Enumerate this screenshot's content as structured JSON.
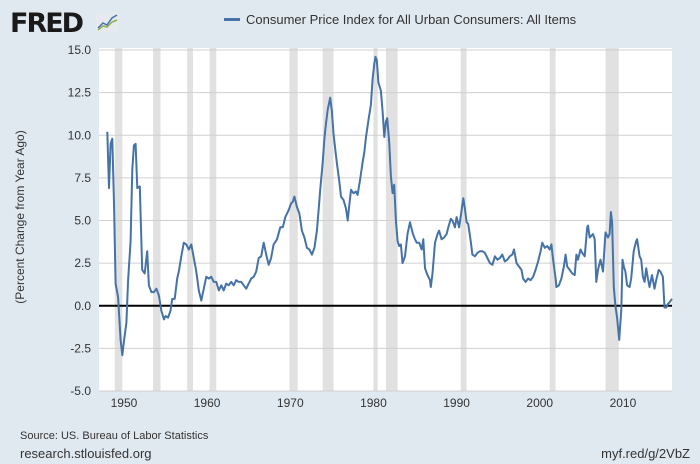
{
  "header": {
    "logo": "FRED",
    "logo_icon": "chart-line-icon"
  },
  "footer": {
    "source": "Source: US. Bureau of Labor Statistics",
    "site": "research.stlouisfed.org",
    "short_url": "myf.red/g/2VbZ"
  },
  "chart_data": {
    "type": "line",
    "title": "",
    "ylabel": "(Percent Change from Year Ago)",
    "xlabel": "",
    "xlim": [
      1947,
      2015.9
    ],
    "ylim": [
      -5,
      15
    ],
    "grid": true,
    "legend_position": "top",
    "line_color": "#4572a7",
    "recession_color": "#e1e1e1",
    "x_ticks": [
      1950,
      1960,
      1970,
      1980,
      1990,
      2000,
      2010
    ],
    "x_tick_labels": [
      "1950",
      "1960",
      "1970",
      "1980",
      "1990",
      "2000",
      "2010"
    ],
    "y_ticks": [
      -5,
      -2.5,
      0,
      2.5,
      5,
      7.5,
      10,
      12.5,
      15
    ],
    "y_tick_labels": [
      "-5.0",
      "-2.5",
      "0.0",
      "2.5",
      "5.0",
      "7.5",
      "10.0",
      "12.5",
      "15.0"
    ],
    "recessions": [
      [
        1948.9,
        1949.8
      ],
      [
        1953.5,
        1954.4
      ],
      [
        1957.6,
        1958.3
      ],
      [
        1960.3,
        1961.1
      ],
      [
        1969.9,
        1970.9
      ],
      [
        1973.9,
        1975.2
      ],
      [
        1980.0,
        1980.5
      ],
      [
        1981.5,
        1982.9
      ],
      [
        1990.5,
        1991.2
      ],
      [
        2001.2,
        2001.9
      ],
      [
        2007.9,
        2009.5
      ]
    ],
    "series": [
      {
        "name": "Consumer Price Index for All Urban Consumers: All Items",
        "points": [
          [
            1948.0,
            10.2
          ],
          [
            1948.2,
            6.9
          ],
          [
            1948.4,
            9.5
          ],
          [
            1948.6,
            9.8
          ],
          [
            1948.8,
            6.0
          ],
          [
            1949.0,
            1.3
          ],
          [
            1949.3,
            0.5
          ],
          [
            1949.6,
            -2.0
          ],
          [
            1949.8,
            -2.9
          ],
          [
            1950.0,
            -2.1
          ],
          [
            1950.3,
            -1.0
          ],
          [
            1950.5,
            1.5
          ],
          [
            1950.8,
            3.8
          ],
          [
            1951.0,
            8.0
          ],
          [
            1951.2,
            9.4
          ],
          [
            1951.4,
            9.5
          ],
          [
            1951.6,
            6.9
          ],
          [
            1951.9,
            7.0
          ],
          [
            1952.2,
            2.1
          ],
          [
            1952.5,
            1.9
          ],
          [
            1952.8,
            3.2
          ],
          [
            1953.0,
            1.2
          ],
          [
            1953.3,
            0.8
          ],
          [
            1953.6,
            0.8
          ],
          [
            1953.9,
            1.0
          ],
          [
            1954.2,
            0.6
          ],
          [
            1954.5,
            -0.3
          ],
          [
            1954.8,
            -0.8
          ],
          [
            1955.0,
            -0.6
          ],
          [
            1955.3,
            -0.7
          ],
          [
            1955.6,
            -0.3
          ],
          [
            1955.8,
            0.4
          ],
          [
            1956.1,
            0.4
          ],
          [
            1956.4,
            1.6
          ],
          [
            1956.6,
            2.0
          ],
          [
            1956.9,
            2.9
          ],
          [
            1957.2,
            3.7
          ],
          [
            1957.5,
            3.6
          ],
          [
            1957.8,
            3.3
          ],
          [
            1958.1,
            3.6
          ],
          [
            1958.4,
            2.8
          ],
          [
            1958.7,
            2.0
          ],
          [
            1959.0,
            0.9
          ],
          [
            1959.3,
            0.3
          ],
          [
            1959.6,
            1.0
          ],
          [
            1959.9,
            1.7
          ],
          [
            1960.2,
            1.6
          ],
          [
            1960.5,
            1.7
          ],
          [
            1960.8,
            1.4
          ],
          [
            1961.1,
            1.4
          ],
          [
            1961.4,
            0.9
          ],
          [
            1961.7,
            1.2
          ],
          [
            1962.0,
            0.9
          ],
          [
            1962.3,
            1.3
          ],
          [
            1962.6,
            1.2
          ],
          [
            1962.9,
            1.4
          ],
          [
            1963.2,
            1.2
          ],
          [
            1963.5,
            1.5
          ],
          [
            1963.8,
            1.4
          ],
          [
            1964.1,
            1.4
          ],
          [
            1964.4,
            1.2
          ],
          [
            1964.7,
            1.0
          ],
          [
            1965.0,
            1.3
          ],
          [
            1965.3,
            1.6
          ],
          [
            1965.6,
            1.7
          ],
          [
            1965.9,
            2.0
          ],
          [
            1966.2,
            2.8
          ],
          [
            1966.5,
            2.9
          ],
          [
            1966.8,
            3.7
          ],
          [
            1967.1,
            3.0
          ],
          [
            1967.4,
            2.4
          ],
          [
            1967.7,
            2.8
          ],
          [
            1968.0,
            3.6
          ],
          [
            1968.4,
            3.9
          ],
          [
            1968.8,
            4.6
          ],
          [
            1969.1,
            4.6
          ],
          [
            1969.4,
            5.2
          ],
          [
            1969.8,
            5.6
          ],
          [
            1970.1,
            6.0
          ],
          [
            1970.3,
            6.1
          ],
          [
            1970.5,
            6.4
          ],
          [
            1970.8,
            5.8
          ],
          [
            1971.1,
            5.4
          ],
          [
            1971.4,
            4.4
          ],
          [
            1971.7,
            4.0
          ],
          [
            1972.0,
            3.4
          ],
          [
            1972.3,
            3.3
          ],
          [
            1972.6,
            3.0
          ],
          [
            1972.9,
            3.4
          ],
          [
            1973.2,
            4.4
          ],
          [
            1973.4,
            5.6
          ],
          [
            1973.6,
            6.8
          ],
          [
            1973.9,
            8.4
          ],
          [
            1974.1,
            9.8
          ],
          [
            1974.3,
            10.7
          ],
          [
            1974.5,
            11.5
          ],
          [
            1974.8,
            12.2
          ],
          [
            1975.0,
            11.4
          ],
          [
            1975.2,
            10.1
          ],
          [
            1975.4,
            9.2
          ],
          [
            1975.6,
            8.4
          ],
          [
            1975.9,
            7.3
          ],
          [
            1976.1,
            6.4
          ],
          [
            1976.4,
            6.2
          ],
          [
            1976.7,
            5.7
          ],
          [
            1976.9,
            5.0
          ],
          [
            1977.1,
            5.9
          ],
          [
            1977.3,
            6.8
          ],
          [
            1977.6,
            6.6
          ],
          [
            1977.9,
            6.7
          ],
          [
            1978.1,
            6.5
          ],
          [
            1978.4,
            7.4
          ],
          [
            1978.7,
            8.4
          ],
          [
            1978.9,
            9.0
          ],
          [
            1979.1,
            9.9
          ],
          [
            1979.4,
            10.9
          ],
          [
            1979.7,
            11.8
          ],
          [
            1979.9,
            13.3
          ],
          [
            1980.1,
            14.2
          ],
          [
            1980.25,
            14.6
          ],
          [
            1980.4,
            14.4
          ],
          [
            1980.6,
            13.1
          ],
          [
            1980.9,
            12.6
          ],
          [
            1981.1,
            11.4
          ],
          [
            1981.3,
            9.9
          ],
          [
            1981.5,
            10.8
          ],
          [
            1981.65,
            11.0
          ],
          [
            1981.9,
            9.6
          ],
          [
            1982.1,
            7.6
          ],
          [
            1982.3,
            6.6
          ],
          [
            1982.5,
            7.1
          ],
          [
            1982.7,
            5.0
          ],
          [
            1982.9,
            3.8
          ],
          [
            1983.1,
            3.5
          ],
          [
            1983.3,
            3.6
          ],
          [
            1983.5,
            2.5
          ],
          [
            1983.8,
            2.9
          ],
          [
            1984.1,
            4.2
          ],
          [
            1984.4,
            4.9
          ],
          [
            1984.7,
            4.3
          ],
          [
            1984.9,
            4.0
          ],
          [
            1985.2,
            3.7
          ],
          [
            1985.5,
            3.7
          ],
          [
            1985.8,
            3.3
          ],
          [
            1986.0,
            3.9
          ],
          [
            1986.2,
            2.2
          ],
          [
            1986.5,
            1.8
          ],
          [
            1986.8,
            1.5
          ],
          [
            1986.9,
            1.1
          ],
          [
            1987.1,
            1.9
          ],
          [
            1987.4,
            3.7
          ],
          [
            1987.7,
            4.2
          ],
          [
            1987.9,
            4.4
          ],
          [
            1988.2,
            3.9
          ],
          [
            1988.5,
            4.0
          ],
          [
            1988.8,
            4.2
          ],
          [
            1989.0,
            4.6
          ],
          [
            1989.3,
            5.1
          ],
          [
            1989.5,
            5.0
          ],
          [
            1989.8,
            4.6
          ],
          [
            1990.0,
            5.2
          ],
          [
            1990.3,
            4.6
          ],
          [
            1990.6,
            5.6
          ],
          [
            1990.8,
            6.3
          ],
          [
            1991.0,
            5.7
          ],
          [
            1991.2,
            4.9
          ],
          [
            1991.4,
            4.8
          ],
          [
            1991.7,
            3.8
          ],
          [
            1991.9,
            3.0
          ],
          [
            1992.2,
            2.9
          ],
          [
            1992.5,
            3.1
          ],
          [
            1992.8,
            3.2
          ],
          [
            1993.1,
            3.2
          ],
          [
            1993.4,
            3.1
          ],
          [
            1993.7,
            2.8
          ],
          [
            1994.0,
            2.5
          ],
          [
            1994.3,
            2.4
          ],
          [
            1994.6,
            2.9
          ],
          [
            1994.9,
            2.7
          ],
          [
            1995.2,
            2.8
          ],
          [
            1995.5,
            3.0
          ],
          [
            1995.8,
            2.6
          ],
          [
            1996.1,
            2.7
          ],
          [
            1996.4,
            2.9
          ],
          [
            1996.7,
            3.0
          ],
          [
            1996.9,
            3.3
          ],
          [
            1997.2,
            2.5
          ],
          [
            1997.5,
            2.3
          ],
          [
            1997.8,
            2.1
          ],
          [
            1998.0,
            1.6
          ],
          [
            1998.3,
            1.4
          ],
          [
            1998.6,
            1.6
          ],
          [
            1998.9,
            1.5
          ],
          [
            1999.2,
            1.7
          ],
          [
            1999.5,
            2.1
          ],
          [
            1999.8,
            2.6
          ],
          [
            2000.1,
            3.2
          ],
          [
            2000.3,
            3.7
          ],
          [
            2000.6,
            3.4
          ],
          [
            2000.9,
            3.5
          ],
          [
            2001.2,
            3.3
          ],
          [
            2001.4,
            3.6
          ],
          [
            2001.6,
            2.7
          ],
          [
            2001.9,
            1.6
          ],
          [
            2002.0,
            1.1
          ],
          [
            2002.3,
            1.2
          ],
          [
            2002.6,
            1.6
          ],
          [
            2002.9,
            2.3
          ],
          [
            2003.1,
            3.0
          ],
          [
            2003.3,
            2.3
          ],
          [
            2003.6,
            2.1
          ],
          [
            2003.9,
            1.9
          ],
          [
            2004.2,
            1.8
          ],
          [
            2004.4,
            3.0
          ],
          [
            2004.6,
            2.7
          ],
          [
            2004.9,
            3.3
          ],
          [
            2005.1,
            3.1
          ],
          [
            2005.4,
            2.9
          ],
          [
            2005.7,
            4.6
          ],
          [
            2005.8,
            4.7
          ],
          [
            2006.0,
            4.0
          ],
          [
            2006.4,
            4.2
          ],
          [
            2006.6,
            3.9
          ],
          [
            2006.8,
            1.4
          ],
          [
            2007.0,
            2.1
          ],
          [
            2007.3,
            2.7
          ],
          [
            2007.6,
            2.0
          ],
          [
            2007.8,
            3.5
          ],
          [
            2007.9,
            4.3
          ],
          [
            2008.2,
            4.0
          ],
          [
            2008.4,
            4.2
          ],
          [
            2008.55,
            5.5
          ],
          [
            2008.7,
            4.9
          ],
          [
            2008.9,
            1.1
          ],
          [
            2009.1,
            0.0
          ],
          [
            2009.3,
            -0.7
          ],
          [
            2009.55,
            -2.0
          ],
          [
            2009.8,
            -0.2
          ],
          [
            2009.95,
            2.7
          ],
          [
            2010.1,
            2.3
          ],
          [
            2010.3,
            2.0
          ],
          [
            2010.5,
            1.2
          ],
          [
            2010.8,
            1.1
          ],
          [
            2011.0,
            1.6
          ],
          [
            2011.3,
            3.2
          ],
          [
            2011.6,
            3.8
          ],
          [
            2011.7,
            3.9
          ],
          [
            2012.0,
            2.9
          ],
          [
            2012.2,
            2.7
          ],
          [
            2012.4,
            1.7
          ],
          [
            2012.6,
            1.4
          ],
          [
            2012.8,
            2.2
          ],
          [
            2013.0,
            1.6
          ],
          [
            2013.2,
            1.1
          ],
          [
            2013.5,
            1.8
          ],
          [
            2013.8,
            1.0
          ],
          [
            2014.0,
            1.5
          ],
          [
            2014.3,
            2.1
          ],
          [
            2014.5,
            2.0
          ],
          [
            2014.8,
            1.7
          ],
          [
            2015.0,
            -0.1
          ],
          [
            2015.2,
            -0.1
          ],
          [
            2015.4,
            0.1
          ],
          [
            2015.6,
            0.2
          ],
          [
            2015.9,
            0.4
          ]
        ]
      }
    ]
  }
}
